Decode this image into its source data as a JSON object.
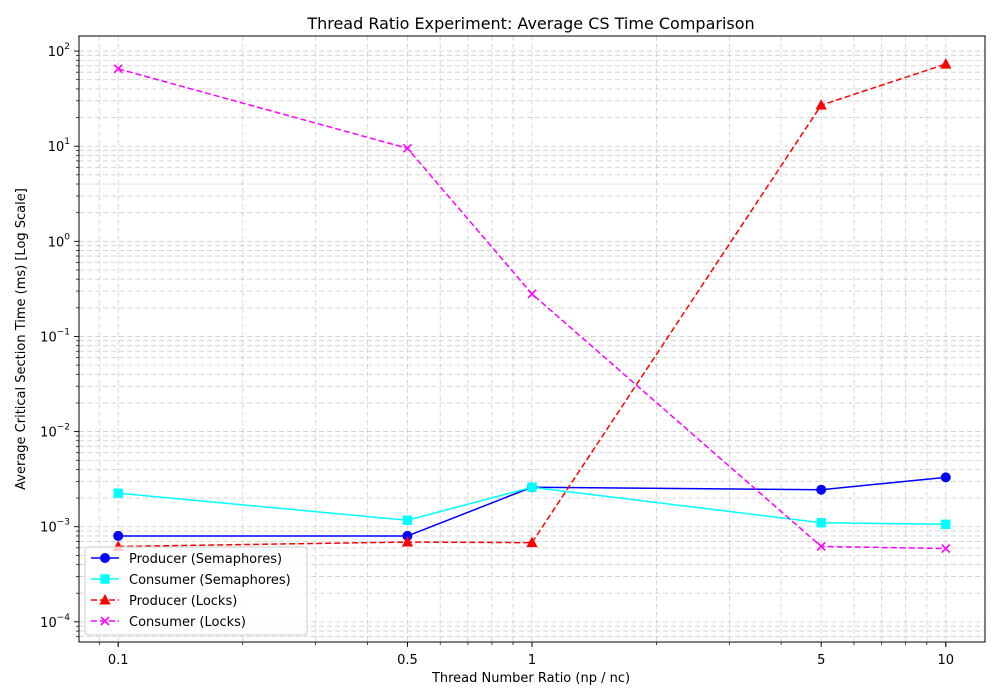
{
  "chart_data": {
    "type": "line",
    "title": "Thread Ratio Experiment: Average CS Time Comparison",
    "xlabel": "Thread Number Ratio (np / nc)",
    "ylabel": "Average Critical Section Time (ms) [Log Scale]",
    "x_scale": "log",
    "y_scale": "log",
    "xlim": [
      0.0804,
      12.44
    ],
    "ylim": [
      6.14e-05,
      144
    ],
    "x": [
      0.1,
      0.5,
      1,
      5,
      10
    ],
    "x_tick_labels": [
      "0.1",
      "0.5",
      "1",
      "5",
      "10"
    ],
    "y_tick_labels": [
      {
        "base": "10",
        "exp": "−4"
      },
      {
        "base": "10",
        "exp": "−3"
      },
      {
        "base": "10",
        "exp": "−2"
      },
      {
        "base": "10",
        "exp": "−1"
      },
      {
        "base": "10",
        "exp": "0"
      },
      {
        "base": "10",
        "exp": "1"
      },
      {
        "base": "10",
        "exp": "2"
      }
    ],
    "grid": true,
    "legend_position": "lower-left",
    "series": [
      {
        "name": "Producer (Semaphores)",
        "color": "#0000ff",
        "dash": "solid",
        "marker": "circle",
        "values": [
          0.0008,
          0.0008,
          0.0026,
          0.00245,
          0.0033
        ]
      },
      {
        "name": "Consumer (Semaphores)",
        "color": "#00ffff",
        "dash": "solid",
        "marker": "square",
        "values": [
          0.00225,
          0.00117,
          0.0026,
          0.0011,
          0.00106
        ]
      },
      {
        "name": "Producer (Locks)",
        "color": "#ff0000",
        "dash": "dashed",
        "marker": "triangle",
        "values": [
          0.00062,
          0.00069,
          0.00068,
          27,
          73
        ]
      },
      {
        "name": "Consumer (Locks)",
        "color": "#ff00ff",
        "dash": "dashed",
        "marker": "x",
        "values": [
          65,
          9.5,
          0.28,
          0.00062,
          0.00059
        ]
      }
    ]
  }
}
